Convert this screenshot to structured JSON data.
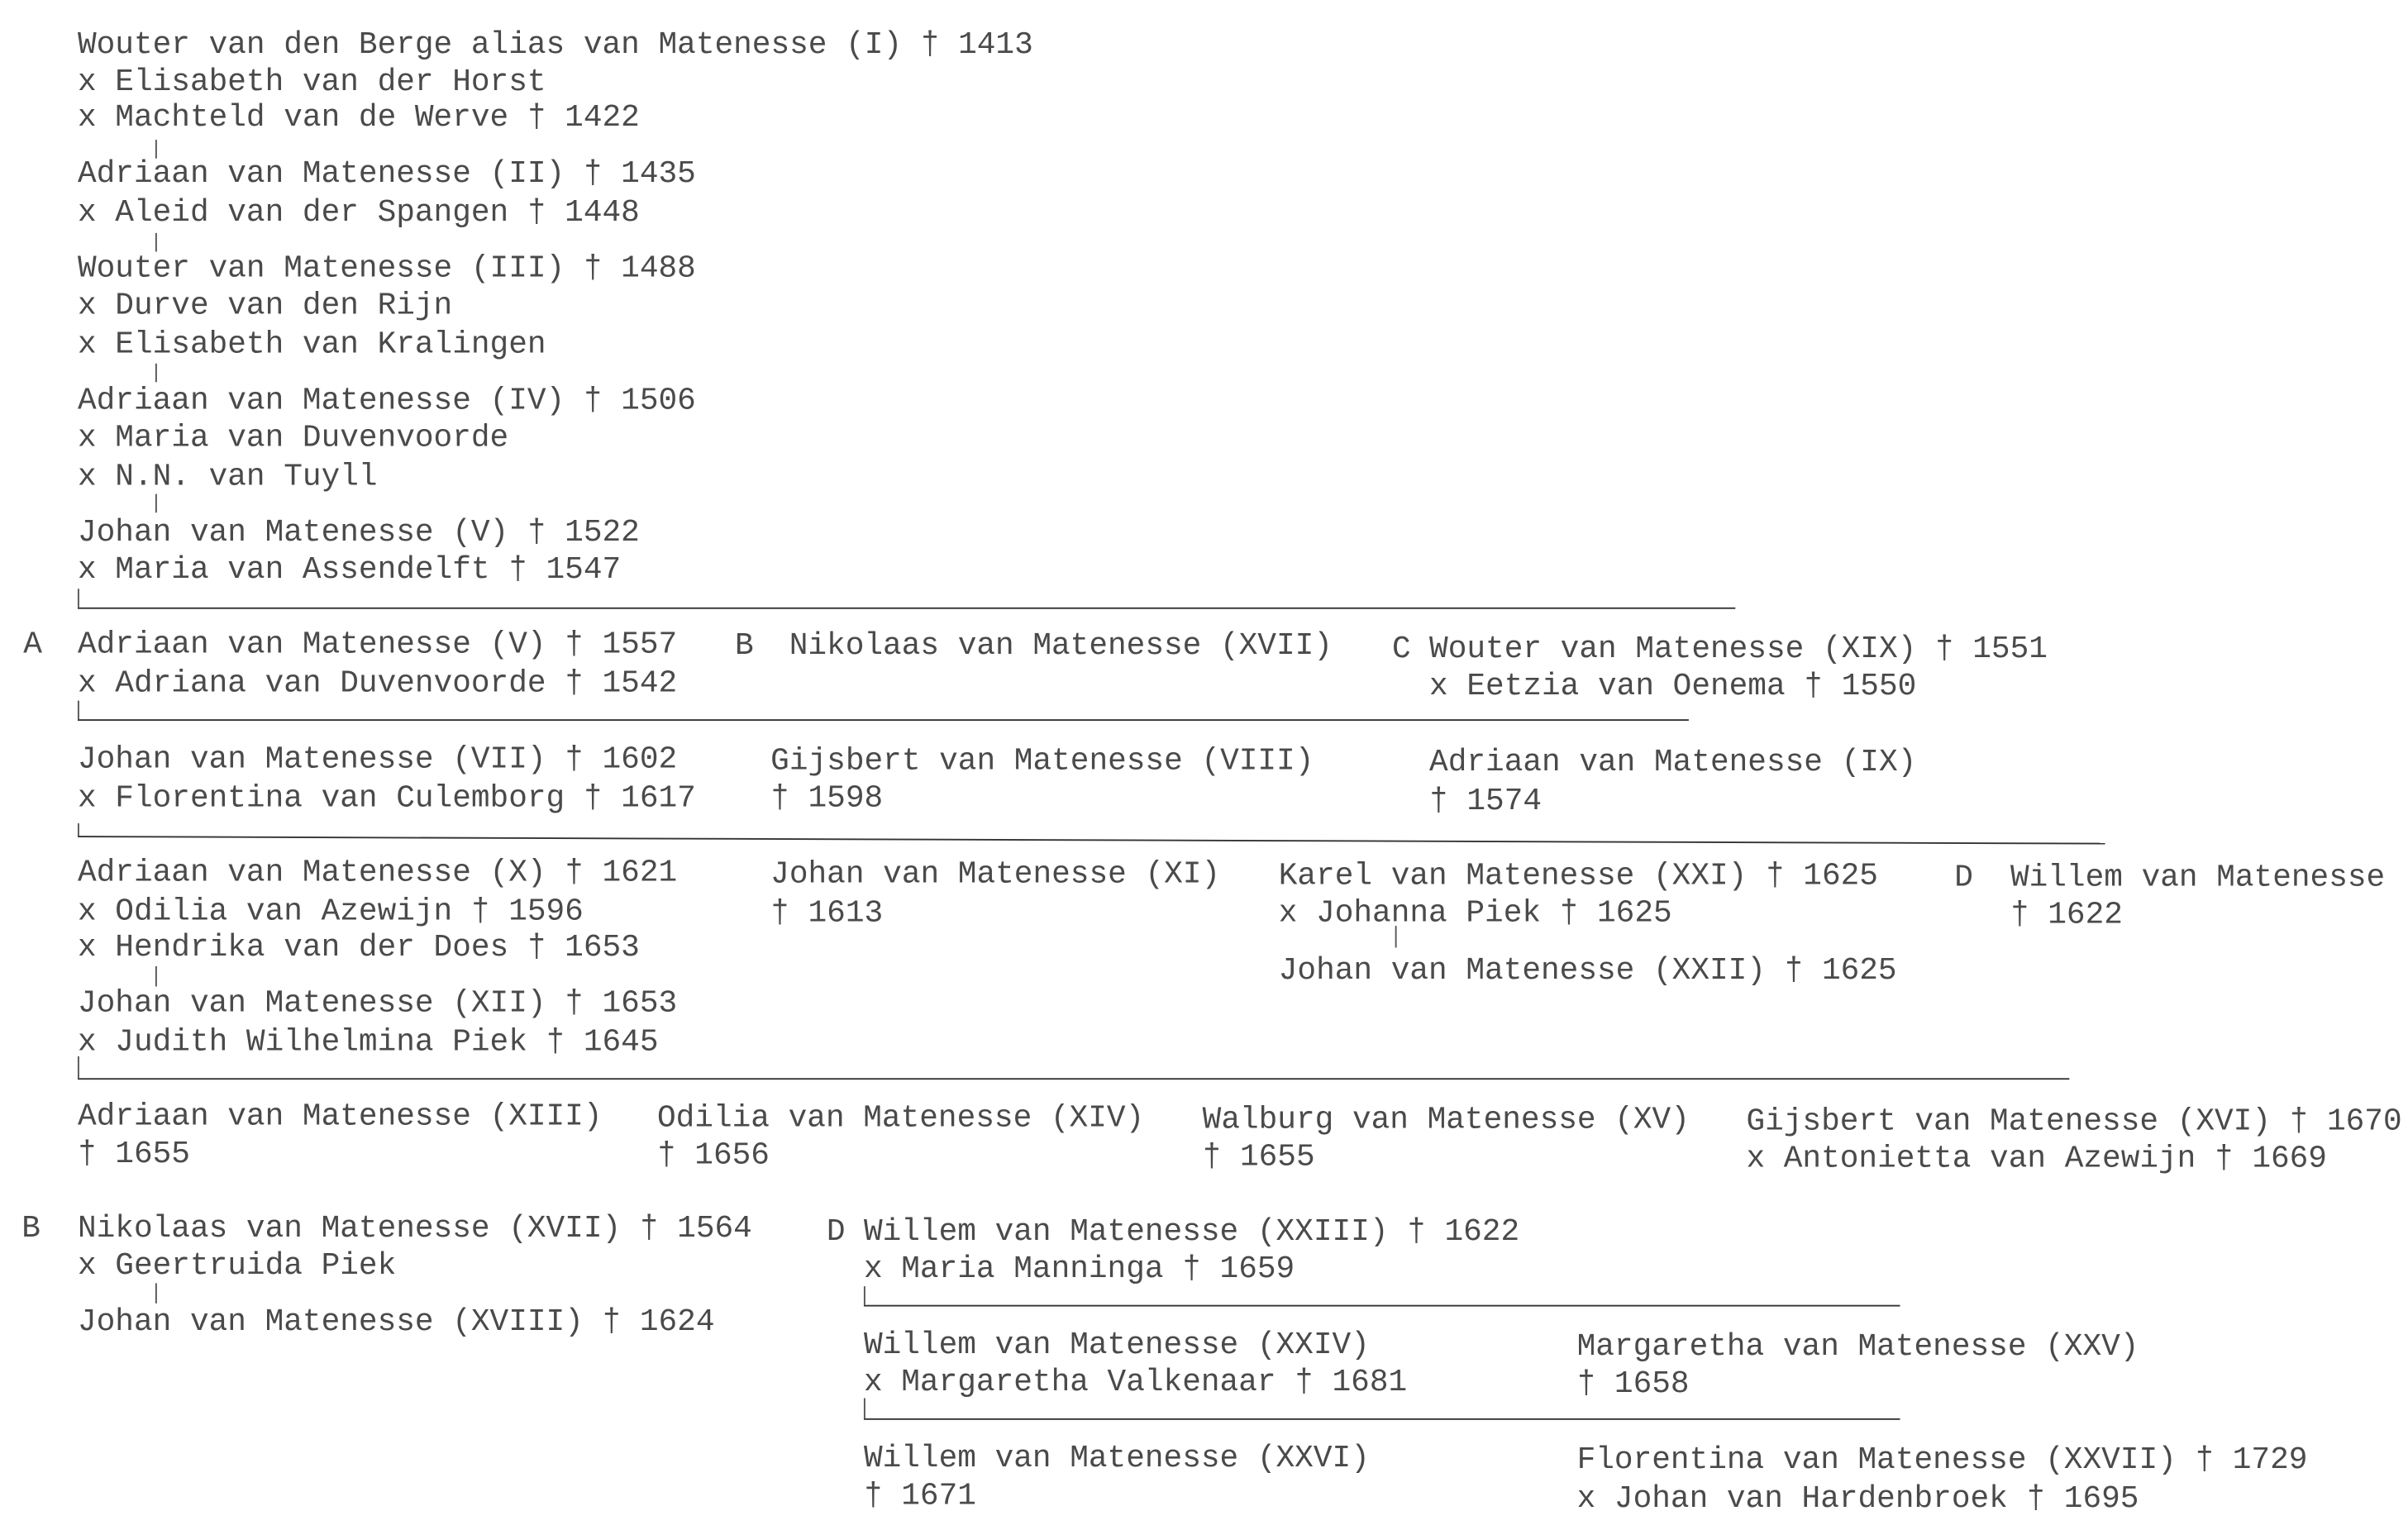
{
  "lines": [
    "Wouter van den Berge alias van Matenesse (I) † 1413",
    "x Elisabeth van der Horst",
    "x Machteld van de Werve † 1422",
    "Adriaan van Matenesse (II) † 1435",
    "x Aleid van der Spangen † 1448",
    "Wouter van Matenesse (III) † 1488",
    "x Durve van den Rijn",
    "x Elisabeth van Kralingen",
    "Adriaan van Matenesse (IV) † 1506",
    "x Maria van Duvenvoorde",
    "x N.N. van Tuyll",
    "Johan van Matenesse (V) † 1522",
    "x Maria van Assendelft † 1547",
    "Adriaan van Matenesse (V) † 1557",
    "Nikolaas van Matenesse (XVII)",
    "Wouter van Matenesse (XIX) † 1551",
    "x Adriana van Duvenvoorde † 1542",
    "x Eetzia van Oenema † 1550",
    "Johan van Matenesse (VII) † 1602",
    "Gijsbert van Matenesse (VIII)",
    "Adriaan van Matenesse (IX)",
    "x Florentina van Culemborg † 1617",
    "† 1598",
    "† 1574",
    "Adriaan van Matenesse (X) † 1621",
    "Johan van Matenesse (XI)",
    "Karel van Matenesse (XXI) † 1625",
    "Willem van Matenesse",
    "x Odilia van Azewijn † 1596",
    "† 1613",
    "x Johanna Piek † 1625",
    "† 1622",
    "x Hendrika van der Does † 1653",
    "Johan van Matenesse (XXII) † 1625",
    "Johan van Matenesse (XII) † 1653",
    "x Judith Wilhelmina Piek † 1645",
    "Adriaan van Matenesse (XIII)",
    "Odilia van Matenesse (XIV)",
    "Walburg van Matenesse (XV)",
    "Gijsbert van Matenesse (XVI) † 1670",
    "† 1655",
    "† 1656",
    "† 1655",
    "x Antonietta van Azewijn † 1669",
    "Nikolaas van Matenesse (XVII) † 1564",
    "Willem van Matenesse (XXIII) † 1622",
    "x Geertruida Piek",
    "x Maria Manninga † 1659",
    "Johan van Matenesse (XVIII) † 1624",
    "Willem van Matenesse (XXIV)",
    "Margaretha van Matenesse (XXV)",
    "x Margaretha Valkenaar † 1681",
    "† 1658",
    "Willem van Matenesse (XXVI)",
    "Florentina van Matenesse (XXVII) † 1729",
    "† 1671",
    "x Johan van Hardenbroek † 1695"
  ],
  "branch_labels": {
    "a": "A",
    "b": "B",
    "c": "C",
    "d": "D",
    "b2": "B",
    "d2": "D"
  }
}
